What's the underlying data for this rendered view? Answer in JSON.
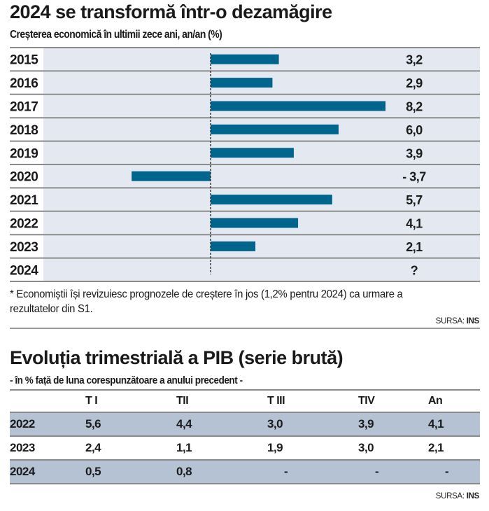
{
  "header": {
    "title": "2024 se transformă într-o dezamăgire",
    "subtitle": "Creșterea economică în ultimii zece ani, an/an (%)"
  },
  "colors": {
    "bar": "#00658c",
    "chart_background": "#e4e8f1",
    "row_line": "#8c8c8c",
    "table_highlight": "#b4c2d4"
  },
  "chart_data": {
    "type": "bar",
    "orientation": "horizontal",
    "title": "2024 se transformă într-o dezamăgire",
    "subtitle": "Creșterea economică în ultimii zece ani, an/an (%)",
    "categories": [
      "2015",
      "2016",
      "2017",
      "2018",
      "2019",
      "2020",
      "2021",
      "2022",
      "2023",
      "2024"
    ],
    "values": [
      3.2,
      2.9,
      8.2,
      6.0,
      3.9,
      -3.7,
      5.7,
      4.1,
      2.1,
      null
    ],
    "value_labels": [
      "3,2",
      "2,9",
      "8,2",
      "6,0",
      "3,9",
      "- 3,7",
      "5,7",
      "4,1",
      "2,1",
      "?"
    ],
    "xlabel": "",
    "ylabel": "",
    "xlim": [
      -4,
      10
    ],
    "zero_line": "dashed",
    "grid": false,
    "legend": "none"
  },
  "footnote": "* Economiștii își revizuiesc prognozele de creștere în jos (1,2% pentru 2024) ca urmare a rezultatelor din S1.",
  "source": {
    "label": "SURSA:",
    "value": "INS"
  },
  "table": {
    "title": "Evoluția trimestrială a PIB (serie brută)",
    "subtitle": "- în % față de luna corespunzătoare a anului precedent -",
    "columns": [
      "",
      "T I",
      "TII",
      "T III",
      "TIV",
      "An"
    ],
    "rows": [
      {
        "year": "2022",
        "values": [
          "5,6",
          "4,4",
          "3,0",
          "3,9",
          "4,1"
        ],
        "highlight": true
      },
      {
        "year": "2023",
        "values": [
          "2,4",
          "1,1",
          "1,9",
          "3,0",
          "2,1"
        ],
        "highlight": false
      },
      {
        "year": "2024",
        "values": [
          "0,5",
          "0,8",
          "-",
          "-",
          "-"
        ],
        "highlight": true
      }
    ]
  },
  "table_source": {
    "label": "SURSA:",
    "value": "INS"
  }
}
